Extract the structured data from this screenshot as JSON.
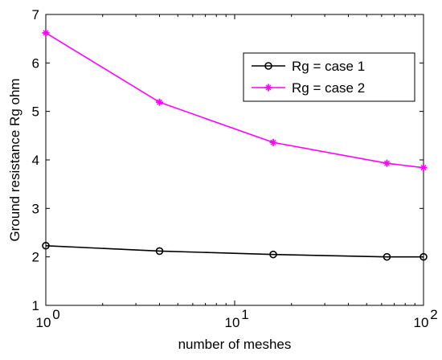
{
  "chart_data": {
    "type": "line",
    "title": "",
    "xlabel": "number of meshes",
    "ylabel": "Ground resistance Rg ohm",
    "x_scale": "log",
    "xlim": [
      1,
      100
    ],
    "ylim": [
      1,
      7
    ],
    "grid": false,
    "legend_position": "top-right",
    "x_ticks": [
      {
        "base": "10",
        "exp": "0",
        "value": 1
      },
      {
        "base": "10",
        "exp": "1",
        "value": 10
      },
      {
        "base": "10",
        "exp": "2",
        "value": 100
      }
    ],
    "y_ticks": [
      {
        "label": "1",
        "value": 1
      },
      {
        "label": "2",
        "value": 2
      },
      {
        "label": "3",
        "value": 3
      },
      {
        "label": "4",
        "value": 4
      },
      {
        "label": "5",
        "value": 5
      },
      {
        "label": "6",
        "value": 6
      },
      {
        "label": "7",
        "value": 7
      }
    ],
    "series": [
      {
        "name": "Rg = case 1",
        "color": "#000000",
        "marker": "circle",
        "points": [
          {
            "x": 1,
            "y": 2.23
          },
          {
            "x": 4,
            "y": 2.12
          },
          {
            "x": 16,
            "y": 2.05
          },
          {
            "x": 64,
            "y": 2.0
          },
          {
            "x": 100,
            "y": 2.0
          }
        ]
      },
      {
        "name": "Rg = case 2",
        "color": "#ff00ff",
        "marker": "star",
        "points": [
          {
            "x": 1,
            "y": 6.62
          },
          {
            "x": 4,
            "y": 5.19
          },
          {
            "x": 16,
            "y": 4.36
          },
          {
            "x": 64,
            "y": 3.93
          },
          {
            "x": 100,
            "y": 3.84
          }
        ]
      }
    ]
  }
}
